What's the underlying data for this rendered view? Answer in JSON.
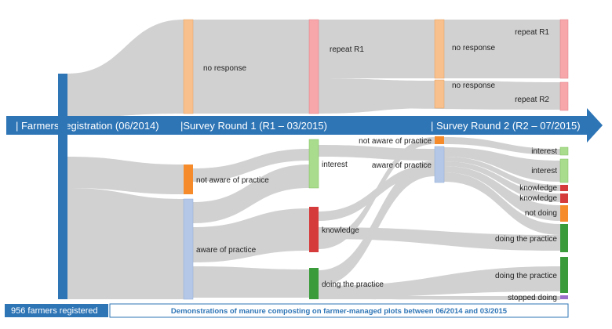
{
  "stages": {
    "registration": "| Farmers registration (06/2014)",
    "round1": "|Survey Round 1 (R1 – 03/2015)",
    "round2": "| Survey Round 2 (R2 – 07/2015)"
  },
  "footer": {
    "left": "956 farmers registered",
    "right": "Demonstrations of manure composting on farmer-managed plots between 06/2014 and 03/2015"
  },
  "labels": {
    "r1_no_response": "no response",
    "r1_not_aware": "not aware of practice",
    "r1_aware": "aware of practice",
    "c3_repeat": "repeat R1",
    "c3_interest": "interest",
    "c3_knowledge": "knowledge",
    "c3_doing": "doing the practice",
    "r2_no_response_a": "no response",
    "r2_no_response_b": "no response",
    "r2_not_aware": "not aware of practice",
    "r2_aware": "aware of practice",
    "c5_repeat_r1": "repeat R1",
    "c5_repeat_r2": "repeat R2",
    "c5_interest_a": "interest",
    "c5_interest_b": "interest",
    "c5_knowledge_a": "knowledge",
    "c5_knowledge_b": "knowledge",
    "c5_not_doing": "not doing",
    "c5_doing_a": "doing the practice",
    "c5_doing_b": "doing the practice",
    "c5_stopped": "stopped doing"
  },
  "colors": {
    "blue": "#2e75b6",
    "orange_light": "#f8c08d",
    "orange": "#f58b2a",
    "blue_light": "#b4c7e7",
    "pink": "#f7a6aa",
    "red": "#d63b3b",
    "green_light": "#a9dc8d",
    "green": "#3a9b3a",
    "purple": "#9b70c9",
    "flow": "#c9c9c9"
  }
}
